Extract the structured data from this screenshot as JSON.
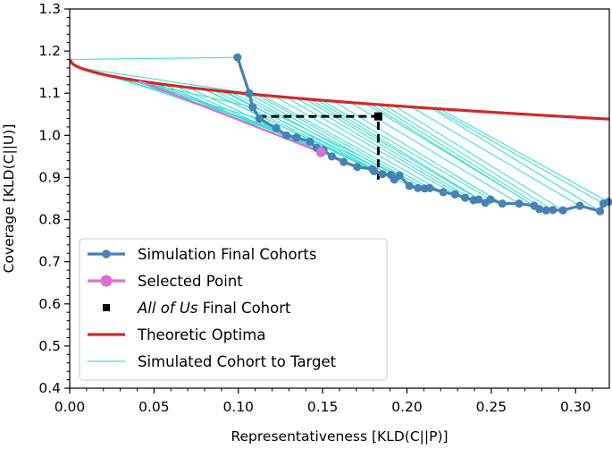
{
  "chart_data": {
    "type": "scatter",
    "xlabel": "Representativeness [KLD(C||P)]",
    "ylabel": "Coverage [KLD(C||U)]",
    "xlim": [
      0.0,
      0.32
    ],
    "ylim": [
      0.4,
      1.3
    ],
    "x_ticks": [
      0.0,
      0.05,
      0.1,
      0.15,
      0.2,
      0.25,
      0.3
    ],
    "x_tick_labels": [
      "0.00",
      "0.05",
      "0.10",
      "0.15",
      "0.20",
      "0.25",
      "0.30"
    ],
    "y_ticks": [
      0.4,
      0.5,
      0.6,
      0.7,
      0.8,
      0.9,
      1.0,
      1.1,
      1.2,
      1.3
    ],
    "y_tick_labels": [
      "0.4",
      "0.5",
      "0.6",
      "0.7",
      "0.8",
      "0.9",
      "1.0",
      "1.1",
      "1.2",
      "1.3"
    ],
    "legend_position": "lower-left",
    "legend": [
      {
        "label": "Simulation Final Cohorts",
        "style": "line-marker",
        "color": "#4682b4"
      },
      {
        "label": "Selected Point",
        "style": "line-marker",
        "color": "#da70d6"
      },
      {
        "label_italic": "All of Us",
        "label_rest": " Final Cohort",
        "style": "square",
        "color": "#000000"
      },
      {
        "label": "Theoretic Optima",
        "style": "line",
        "color": "#d62728"
      },
      {
        "label": "Simulated Cohort to Target",
        "style": "line",
        "color": "#40e0d0"
      }
    ],
    "colors": {
      "frontier": "#4682b4",
      "selected": "#da70d6",
      "optima": "#d62728",
      "target_lines": "#40e0d0",
      "all_of_us": "#000000"
    },
    "series": [
      {
        "name": "Simulation Final Cohorts",
        "x": [
          0.0995,
          0.1065,
          0.1085,
          0.1125,
          0.1225,
          0.1285,
          0.1345,
          0.1425,
          0.1465,
          0.1505,
          0.1555,
          0.1625,
          0.1705,
          0.1795,
          0.1805,
          0.1855,
          0.1905,
          0.1925,
          0.1955,
          0.2015,
          0.2065,
          0.2105,
          0.2135,
          0.2215,
          0.2285,
          0.2345,
          0.2395,
          0.2425,
          0.2465,
          0.2495,
          0.2565,
          0.2665,
          0.2755,
          0.2785,
          0.2825,
          0.2865,
          0.2925,
          0.3025,
          0.3145,
          0.3165,
          0.3195
        ],
        "y": [
          1.185,
          1.1,
          1.067,
          1.04,
          1.017,
          1.0,
          0.995,
          0.985,
          0.97,
          0.965,
          0.95,
          0.937,
          0.925,
          0.92,
          0.915,
          0.908,
          0.906,
          0.895,
          0.905,
          0.88,
          0.875,
          0.874,
          0.875,
          0.865,
          0.86,
          0.852,
          0.846,
          0.848,
          0.84,
          0.848,
          0.838,
          0.838,
          0.833,
          0.825,
          0.822,
          0.823,
          0.822,
          0.833,
          0.82,
          0.838,
          0.842
        ]
      },
      {
        "name": "Selected Point",
        "x": [
          0.149
        ],
        "y": [
          0.96
        ]
      },
      {
        "name": "All of Us Final Cohort",
        "x": [
          0.183
        ],
        "y": [
          1.045
        ]
      }
    ],
    "all_of_us_reference_box": {
      "x0": 0.112,
      "x1": 0.183,
      "y0": 0.895,
      "y1": 1.045
    },
    "theoretic_optima": {
      "description": "y approx 1.18 - 0.25*sqrt(x)",
      "x_range": [
        0.0,
        0.32
      ]
    }
  }
}
